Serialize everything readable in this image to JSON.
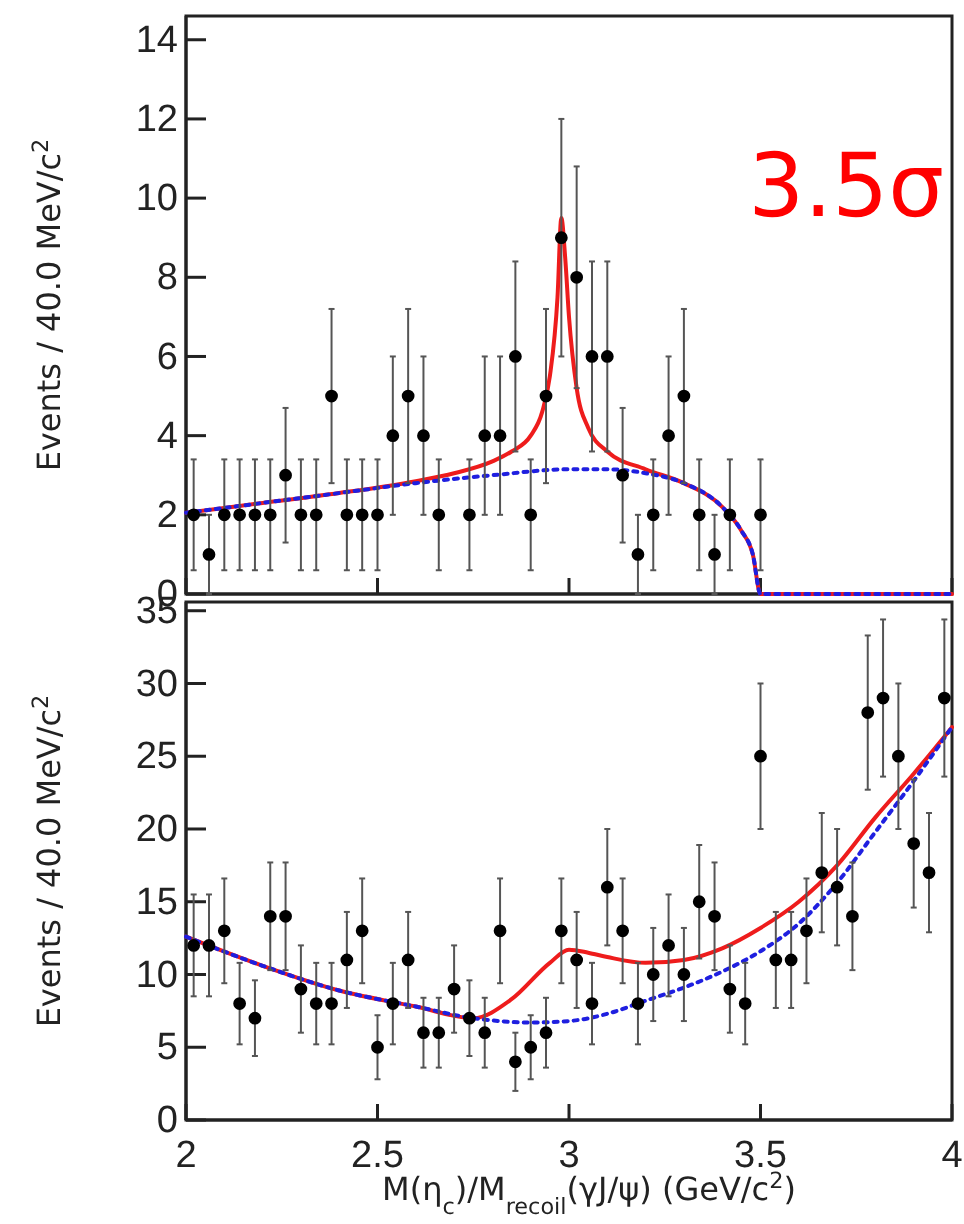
{
  "chart_data": [
    {
      "type": "scatter",
      "ylabel": "Events / 40.0 MeV/c$^{2}$",
      "annotations": [
        "3.5σ"
      ],
      "tick_labels": "y",
      "xlim": [
        2,
        4
      ],
      "xticks": [
        2,
        2.5,
        3,
        3.5,
        4
      ],
      "ylim": [
        0,
        14.6
      ],
      "yticks": [
        0,
        2,
        4,
        6,
        8,
        10,
        12,
        14
      ],
      "series": [
        {
          "type": "line",
          "color": "#ee1c1c",
          "line_style": "solid",
          "x": [
            2.0,
            2.2,
            2.4,
            2.6,
            2.7,
            2.8,
            2.85,
            2.9,
            2.93,
            2.95,
            2.97,
            2.98,
            2.99,
            3.0,
            3.02,
            3.05,
            3.1,
            3.2,
            3.3,
            3.4,
            3.45,
            3.48,
            3.5,
            3.6,
            3.8,
            4.0
          ],
          "values": [
            2.05,
            2.3,
            2.55,
            2.85,
            3.05,
            3.35,
            3.6,
            4.0,
            4.6,
            5.5,
            7.5,
            9.5,
            8.5,
            7.0,
            5.2,
            4.2,
            3.6,
            3.15,
            2.8,
            2.2,
            1.6,
            1.0,
            0,
            0,
            0,
            0
          ]
        },
        {
          "type": "line",
          "color": "#1f1fe0",
          "line_style": "dotted",
          "x": [
            2.0,
            2.2,
            2.4,
            2.6,
            2.8,
            3.0,
            3.1,
            3.2,
            3.3,
            3.4,
            3.45,
            3.48,
            3.5,
            3.6,
            3.8,
            4.0
          ],
          "values": [
            2.05,
            2.3,
            2.55,
            2.8,
            3.0,
            3.15,
            3.15,
            3.05,
            2.8,
            2.2,
            1.6,
            1.0,
            0,
            0,
            0,
            0
          ]
        },
        {
          "type": "scatter",
          "color": "#000000",
          "marker": "circle",
          "x": [
            2.02,
            2.06,
            2.1,
            2.14,
            2.18,
            2.22,
            2.26,
            2.3,
            2.34,
            2.38,
            2.42,
            2.46,
            2.5,
            2.54,
            2.58,
            2.62,
            2.66,
            2.7,
            2.74,
            2.78,
            2.82,
            2.86,
            2.9,
            2.94,
            2.98,
            3.02,
            3.06,
            3.1,
            3.14,
            3.18,
            3.22,
            3.26,
            3.3,
            3.34,
            3.38,
            3.42,
            3.46,
            3.5
          ],
          "values": [
            2,
            1,
            2,
            2,
            2,
            2,
            3,
            2,
            2,
            5,
            2,
            2,
            2,
            4,
            5,
            4,
            2,
            null,
            2,
            4,
            4,
            6,
            2,
            5,
            9,
            8,
            6,
            6,
            3,
            1,
            2,
            4,
            5,
            2,
            1,
            2,
            null,
            2
          ],
          "errors": [
            [
              0.6,
              3.4
            ],
            [
              0,
              2
            ],
            [
              0.6,
              3.4
            ],
            [
              0.6,
              3.4
            ],
            [
              0.6,
              3.4
            ],
            [
              0.6,
              3.4
            ],
            [
              1.3,
              4.7
            ],
            [
              0.6,
              3.4
            ],
            [
              0.6,
              3.4
            ],
            [
              2.8,
              7.2
            ],
            [
              0.6,
              3.4
            ],
            [
              0.6,
              3.4
            ],
            [
              0.6,
              3.4
            ],
            [
              2,
              6
            ],
            [
              2.8,
              7.2
            ],
            [
              2,
              6
            ],
            [
              0.6,
              3.4
            ],
            null,
            [
              0.6,
              3.4
            ],
            [
              2,
              6
            ],
            [
              2,
              6
            ],
            [
              3.6,
              8.4
            ],
            [
              0.6,
              3.4
            ],
            [
              2.8,
              7.2
            ],
            [
              6,
              12
            ],
            [
              5.2,
              10.8
            ],
            [
              3.6,
              8.4
            ],
            [
              3.6,
              8.4
            ],
            [
              1.3,
              4.7
            ],
            [
              0,
              2
            ],
            [
              0.6,
              3.4
            ],
            [
              2,
              6
            ],
            [
              2.8,
              7.2
            ],
            [
              0.6,
              3.4
            ],
            [
              0,
              2
            ],
            [
              0.6,
              3.4
            ],
            null,
            [
              0.6,
              3.4
            ]
          ]
        }
      ]
    },
    {
      "type": "scatter",
      "xlabel": "M(η$_{c}$)/M$_{recoil}$(γJ/ψ) (GeV/c$^{2}$)",
      "ylabel": "Events / 40.0 MeV/c$^{2}$",
      "xlim": [
        2,
        4
      ],
      "xticks": [
        2,
        2.5,
        3,
        3.5,
        4
      ],
      "ylim": [
        0,
        35.6
      ],
      "yticks": [
        0,
        5,
        10,
        15,
        20,
        25,
        30,
        35
      ],
      "series": [
        {
          "type": "line",
          "color": "#ee1c1c",
          "line_style": "solid",
          "x": [
            2.0,
            2.2,
            2.4,
            2.6,
            2.75,
            2.85,
            2.95,
            3.0,
            3.05,
            3.1,
            3.2,
            3.3,
            3.4,
            3.5,
            3.6,
            3.7,
            3.8,
            3.9,
            4.0
          ],
          "values": [
            12.6,
            10.6,
            8.9,
            7.8,
            7.0,
            8.3,
            10.8,
            11.7,
            11.5,
            11.2,
            10.8,
            11.0,
            11.8,
            13.2,
            15.0,
            17.5,
            20.8,
            23.8,
            27.0
          ]
        },
        {
          "type": "line",
          "color": "#1f1fe0",
          "line_style": "dotted",
          "x": [
            2.0,
            2.2,
            2.4,
            2.6,
            2.75,
            2.9,
            3.0,
            3.1,
            3.2,
            3.3,
            3.4,
            3.5,
            3.6,
            3.7,
            3.8,
            3.9,
            4.0
          ],
          "values": [
            12.6,
            10.6,
            8.9,
            7.8,
            7.0,
            6.7,
            6.8,
            7.3,
            8.2,
            9.1,
            10.2,
            11.6,
            13.5,
            16.3,
            19.8,
            23.3,
            27.0
          ]
        },
        {
          "type": "scatter",
          "color": "#000000",
          "marker": "circle",
          "x": [
            2.02,
            2.06,
            2.1,
            2.14,
            2.18,
            2.22,
            2.26,
            2.3,
            2.34,
            2.38,
            2.42,
            2.46,
            2.5,
            2.54,
            2.58,
            2.62,
            2.66,
            2.7,
            2.74,
            2.78,
            2.82,
            2.86,
            2.9,
            2.94,
            2.98,
            3.02,
            3.06,
            3.1,
            3.14,
            3.18,
            3.22,
            3.26,
            3.3,
            3.34,
            3.38,
            3.42,
            3.46,
            3.5,
            3.54,
            3.58,
            3.62,
            3.66,
            3.7,
            3.74,
            3.78,
            3.82,
            3.86,
            3.9,
            3.94,
            3.98
          ],
          "values": [
            12,
            12,
            13,
            8,
            7,
            14,
            14,
            9,
            8,
            8,
            11,
            13,
            5,
            8,
            11,
            6,
            6,
            9,
            7,
            6,
            13,
            4,
            5,
            6,
            13,
            11,
            8,
            16,
            13,
            8,
            10,
            12,
            10,
            15,
            14,
            9,
            8,
            25,
            11,
            11,
            13,
            17,
            16,
            14,
            28,
            29,
            25,
            19,
            17,
            29
          ],
          "errors": [
            [
              8.5,
              15.5
            ],
            [
              8.5,
              15.5
            ],
            [
              9.4,
              16.6
            ],
            [
              5.2,
              10.8
            ],
            [
              4.4,
              9.6
            ],
            [
              10.3,
              17.7
            ],
            [
              10.3,
              17.7
            ],
            [
              6,
              12
            ],
            [
              5.2,
              10.8
            ],
            [
              5.2,
              10.8
            ],
            [
              7.7,
              14.3
            ],
            [
              9.4,
              16.6
            ],
            [
              2.8,
              7.2
            ],
            [
              5.2,
              10.8
            ],
            [
              7.7,
              14.3
            ],
            [
              3.6,
              8.4
            ],
            [
              3.6,
              8.4
            ],
            [
              6,
              12
            ],
            [
              4.4,
              9.6
            ],
            [
              3.6,
              8.4
            ],
            [
              9.4,
              16.6
            ],
            [
              2,
              6
            ],
            [
              2.8,
              7.2
            ],
            [
              3.6,
              8.4
            ],
            [
              9.4,
              16.6
            ],
            [
              7.7,
              14.3
            ],
            [
              5.2,
              10.8
            ],
            [
              12,
              20
            ],
            [
              9.4,
              16.6
            ],
            [
              5.2,
              10.8
            ],
            [
              6.8,
              13.2
            ],
            [
              8.5,
              15.5
            ],
            [
              6.8,
              13.2
            ],
            [
              11.1,
              18.9
            ],
            [
              10.3,
              17.7
            ],
            [
              6,
              12
            ],
            [
              5.2,
              10.8
            ],
            [
              20,
              30
            ],
            [
              7.7,
              14.3
            ],
            [
              7.7,
              14.3
            ],
            [
              9.4,
              16.6
            ],
            [
              12.9,
              21.1
            ],
            [
              12,
              20
            ],
            [
              10.3,
              17.7
            ],
            [
              22.7,
              33.3
            ],
            [
              23.6,
              34.4
            ],
            [
              20,
              30
            ],
            [
              14.6,
              23.4
            ],
            [
              12.9,
              21.1
            ],
            [
              23.6,
              34.4
            ]
          ]
        }
      ]
    }
  ]
}
